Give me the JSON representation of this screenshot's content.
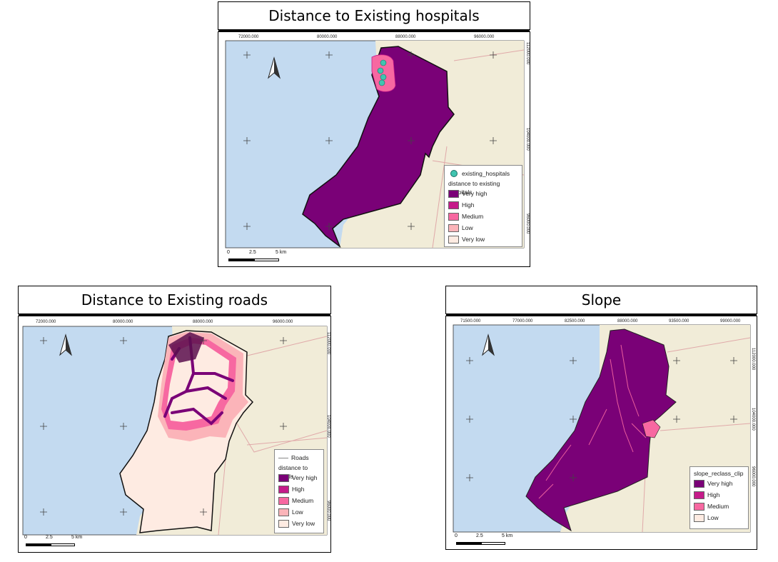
{
  "colors": {
    "sea": "#c3daf0",
    "land": "#f1ecd8",
    "very_high": "#7a0177",
    "high": "#c51b8a",
    "medium": "#f768a1",
    "low": "#fbb4b9",
    "very_low": "#feebe2",
    "hospital": "#40c4b0"
  },
  "hospitals_map": {
    "title": "Distance to Existing hospitals",
    "coords_top": [
      "72000.000",
      "80000.000",
      "88000.000",
      "96000.000"
    ],
    "coords_right": [
      "112000.000",
      "104000.000",
      "96000.000"
    ],
    "legend": {
      "point_label": "existing_hospitals",
      "heading": "distance to existing hospitals",
      "items": [
        "Very high",
        "High",
        "Medium",
        "Low",
        "Very low"
      ]
    },
    "scale": [
      "0",
      "2.5",
      "5 km"
    ]
  },
  "roads_map": {
    "title": "Distance to Existing roads",
    "coords_top": [
      "72000.000",
      "80000.000",
      "88000.000",
      "96000.000"
    ],
    "coords_right": [
      "112000.000",
      "104000.000",
      "96000.000"
    ],
    "legend": {
      "line_label": "Roads",
      "heading": "distance to roads",
      "items": [
        "Very high",
        "High",
        "Medium",
        "Low",
        "Very low"
      ]
    },
    "scale": [
      "0",
      "2.5",
      "5 km"
    ]
  },
  "slope_map": {
    "title": "Slope",
    "coords_top": [
      "71500.000",
      "77000.000",
      "82500.000",
      "88000.000",
      "93500.000",
      "99000.000"
    ],
    "coords_right": [
      "112000.000",
      "104000.000",
      "96000.000"
    ],
    "legend": {
      "heading": "slope_reclass_clip",
      "items": [
        "Very high",
        "High",
        "Medium",
        "Low"
      ]
    },
    "scale": [
      "0",
      "2.5",
      "5 km"
    ]
  }
}
